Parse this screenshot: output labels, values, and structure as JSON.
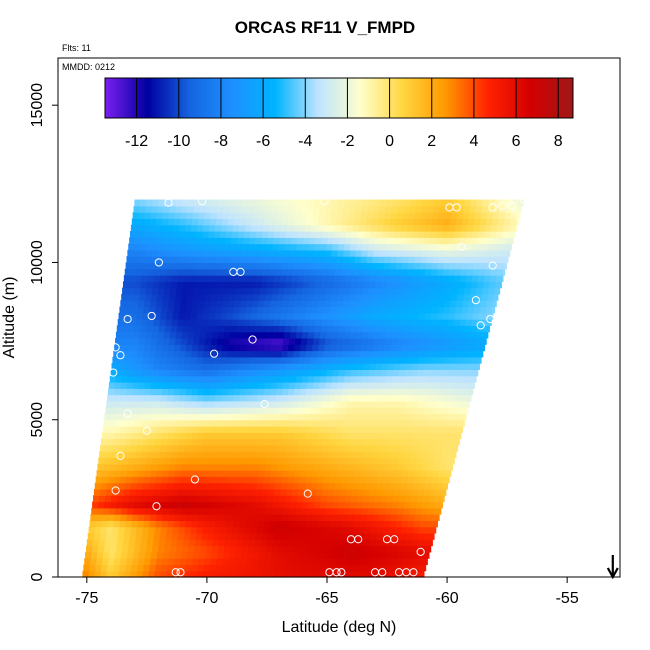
{
  "title": "ORCAS RF11 V_FMPD",
  "flights_label": "Flts: 11",
  "mmdd_label": "MMDD: 0212",
  "chart_data": {
    "type": "heatmap",
    "title": "ORCAS RF11 V_FMPD",
    "xlabel": "Latitude (deg N)",
    "ylabel": "Altitude (m)",
    "xlim": [
      -76.2,
      -52.8
    ],
    "ylim": [
      0,
      16500
    ],
    "x_ticks": [
      -75,
      -70,
      -65,
      -60,
      -55
    ],
    "x_tick_labels": [
      "-75",
      "-70",
      "-65",
      "-60",
      "-55"
    ],
    "y_ticks": [
      0,
      5000,
      10000,
      15000
    ],
    "y_tick_labels": [
      "0",
      "5000",
      "10000",
      "15000"
    ],
    "colorbar": {
      "vmin": -13.5,
      "vmax": 8.7,
      "ticks": [
        -12,
        -10,
        -8,
        -6,
        -4,
        -2,
        0,
        2,
        4,
        6,
        8
      ],
      "tick_labels": [
        "-12",
        "-10",
        "-8",
        "-6",
        "-4",
        "-2",
        "0",
        "2",
        "4",
        "6",
        "8"
      ],
      "colors": [
        "#7b1ff0",
        "#0000a0",
        "#1565e0",
        "#1e90ff",
        "#00b4ff",
        "#bde3ff",
        "#ffffcc",
        "#ffd640",
        "#ff9900",
        "#ff2200",
        "#d40000",
        "#a01818"
      ]
    },
    "domain_bottom": [
      -75.2,
      -61.0
    ],
    "domain_top": [
      -73.0,
      -56.8
    ],
    "domain_altitude": [
      0,
      12000
    ],
    "field_anchors": [
      {
        "alt": 0,
        "vals": [
          [
            -75,
            3
          ],
          [
            -74,
            1
          ],
          [
            -72,
            4
          ],
          [
            -70,
            5
          ],
          [
            -66,
            6
          ],
          [
            -63,
            6
          ],
          [
            -61,
            5
          ]
        ]
      },
      {
        "alt": 800,
        "vals": [
          [
            -75,
            2
          ],
          [
            -74,
            0
          ],
          [
            -72,
            3
          ],
          [
            -70,
            4
          ],
          [
            -67,
            6
          ],
          [
            -64,
            7
          ],
          [
            -61,
            6
          ]
        ]
      },
      {
        "alt": 1600,
        "vals": [
          [
            -75,
            1
          ],
          [
            -74,
            0
          ],
          [
            -72,
            3
          ],
          [
            -70,
            5
          ],
          [
            -67,
            7
          ],
          [
            -64,
            6
          ],
          [
            -61,
            4
          ]
        ]
      },
      {
        "alt": 2300,
        "vals": [
          [
            -75,
            4
          ],
          [
            -73,
            6
          ],
          [
            -71,
            7
          ],
          [
            -68,
            6
          ],
          [
            -65,
            4
          ],
          [
            -62,
            3
          ],
          [
            -60,
            2
          ]
        ]
      },
      {
        "alt": 3500,
        "vals": [
          [
            -75,
            1
          ],
          [
            -73,
            2
          ],
          [
            -71,
            3
          ],
          [
            -68,
            3
          ],
          [
            -65,
            2
          ],
          [
            -62,
            1
          ],
          [
            -60,
            0
          ]
        ]
      },
      {
        "alt": 4600,
        "vals": [
          [
            -74,
            -1
          ],
          [
            -72,
            0
          ],
          [
            -70,
            1
          ],
          [
            -67,
            1
          ],
          [
            -64,
            0
          ],
          [
            -62,
            0
          ],
          [
            -60,
            0
          ]
        ]
      },
      {
        "alt": 5600,
        "vals": [
          [
            -74,
            -3
          ],
          [
            -72,
            -3
          ],
          [
            -70,
            -4
          ],
          [
            -67,
            -3
          ],
          [
            -64,
            -1
          ],
          [
            -62,
            -1
          ],
          [
            -59,
            -2
          ]
        ]
      },
      {
        "alt": 6600,
        "vals": [
          [
            -74,
            -6
          ],
          [
            -72,
            -8
          ],
          [
            -70,
            -9
          ],
          [
            -67,
            -7
          ],
          [
            -64,
            -5
          ],
          [
            -61,
            -4
          ],
          [
            -59,
            -4
          ]
        ]
      },
      {
        "alt": 7400,
        "vals": [
          [
            -73,
            -8
          ],
          [
            -71,
            -10
          ],
          [
            -69,
            -12
          ],
          [
            -67,
            -13
          ],
          [
            -65,
            -10
          ],
          [
            -62,
            -8
          ],
          [
            -58,
            -6
          ]
        ]
      },
      {
        "alt": 8300,
        "vals": [
          [
            -73,
            -9
          ],
          [
            -71,
            -11
          ],
          [
            -69,
            -10
          ],
          [
            -66,
            -8
          ],
          [
            -63,
            -6
          ],
          [
            -60,
            -5
          ],
          [
            -58,
            -4
          ]
        ]
      },
      {
        "alt": 9400,
        "vals": [
          [
            -73,
            -10
          ],
          [
            -71,
            -11
          ],
          [
            -68,
            -11
          ],
          [
            -66,
            -10
          ],
          [
            -63,
            -8
          ],
          [
            -60,
            -6
          ],
          [
            -57,
            -4
          ]
        ]
      },
      {
        "alt": 10400,
        "vals": [
          [
            -73,
            -8
          ],
          [
            -71,
            -7
          ],
          [
            -68,
            -6
          ],
          [
            -65,
            -5
          ],
          [
            -63,
            -3
          ],
          [
            -60,
            -2
          ],
          [
            -57,
            -3
          ]
        ]
      },
      {
        "alt": 11200,
        "vals": [
          [
            -73,
            -6
          ],
          [
            -71,
            -5
          ],
          [
            -68,
            -3
          ],
          [
            -65,
            -1
          ],
          [
            -62,
            1
          ],
          [
            -60,
            2
          ],
          [
            -57,
            -1
          ]
        ]
      },
      {
        "alt": 12000,
        "vals": [
          [
            -73,
            -4
          ],
          [
            -71,
            -3
          ],
          [
            -68,
            -2
          ],
          [
            -65,
            -1
          ],
          [
            -62,
            0
          ],
          [
            -60,
            1
          ],
          [
            -57,
            -2
          ]
        ]
      }
    ],
    "observation_points": [
      [
        -71.3,
        150
      ],
      [
        -71.1,
        150
      ],
      [
        -64.9,
        150
      ],
      [
        -64.6,
        150
      ],
      [
        -64.4,
        150
      ],
      [
        -63.0,
        150
      ],
      [
        -62.7,
        150
      ],
      [
        -62.0,
        150
      ],
      [
        -61.7,
        150
      ],
      [
        -61.4,
        150
      ],
      [
        -61.1,
        800
      ],
      [
        -64.0,
        1200
      ],
      [
        -63.7,
        1200
      ],
      [
        -62.5,
        1200
      ],
      [
        -62.2,
        1200
      ],
      [
        -72.1,
        2250
      ],
      [
        -73.8,
        2750
      ],
      [
        -65.8,
        2650
      ],
      [
        -70.5,
        3100
      ],
      [
        -73.6,
        3850
      ],
      [
        -72.5,
        4650
      ],
      [
        -73.3,
        5200
      ],
      [
        -67.6,
        5500
      ],
      [
        -73.9,
        6500
      ],
      [
        -73.6,
        7050
      ],
      [
        -69.7,
        7100
      ],
      [
        -68.1,
        7550
      ],
      [
        -73.8,
        7300
      ],
      [
        -72.3,
        8300
      ],
      [
        -73.3,
        8200
      ],
      [
        -68.9,
        9700
      ],
      [
        -68.6,
        9700
      ],
      [
        -72.0,
        10000
      ],
      [
        -71.6,
        11900
      ],
      [
        -70.2,
        11950
      ],
      [
        -65.1,
        11950
      ],
      [
        -58.1,
        11750
      ],
      [
        -57.7,
        11800
      ],
      [
        -57.3,
        11800
      ],
      [
        -56.8,
        12000
      ],
      [
        -56.8,
        12200
      ],
      [
        -59.9,
        11750
      ],
      [
        -59.6,
        11750
      ],
      [
        -59.4,
        10500
      ],
      [
        -58.1,
        9900
      ],
      [
        -58.8,
        8800
      ],
      [
        -58.2,
        8200
      ],
      [
        -58.6,
        8000
      ]
    ],
    "arrow": {
      "lat": -53.1
    }
  }
}
